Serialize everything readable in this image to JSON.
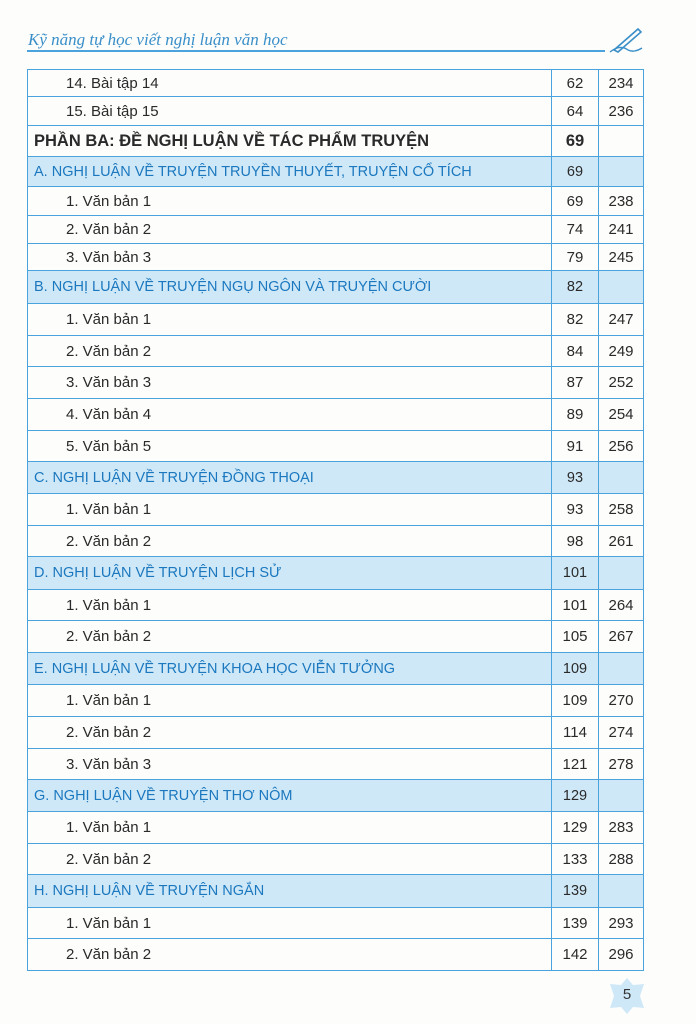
{
  "header": {
    "running_title": "Kỹ năng tự học viết nghị luận văn học",
    "icon": "pen-icon"
  },
  "rows": [
    {
      "type": "item",
      "title": "14. Bài tập 14",
      "p1": "62",
      "p2": "234",
      "h": 27
    },
    {
      "type": "item",
      "title": "15. Bài tập 15",
      "p1": "64",
      "p2": "236",
      "h": 29
    },
    {
      "type": "part",
      "title": "PHẦN BA: ĐỀ NGHỊ LUẬN VỀ TÁC PHẨM TRUYỆN",
      "p1": "69",
      "p2": "",
      "h": 31
    },
    {
      "type": "sec",
      "title": "A. NGHỊ LUẬN VỀ TRUYỆN TRUYỀN THUYẾT, TRUYỆN CỔ TÍCH",
      "p1": "69",
      "p2": "",
      "h": 30
    },
    {
      "type": "item",
      "title": "1. Văn bản 1",
      "p1": "69",
      "p2": "238",
      "h": 29
    },
    {
      "type": "item",
      "title": "2. Văn bản 2",
      "p1": "74",
      "p2": "241",
      "h": 28
    },
    {
      "type": "item",
      "title": "3. Văn bản 3",
      "p1": "79",
      "p2": "245",
      "h": 27
    },
    {
      "type": "sec",
      "title": "B. NGHỊ LUẬN VỀ TRUYỆN NGỤ NGÔN VÀ TRUYỆN CƯỜI",
      "p1": "82",
      "p2": "",
      "h": 33
    },
    {
      "type": "item",
      "title": "1. Văn bản 1",
      "p1": "82",
      "p2": "247",
      "h": 32
    },
    {
      "type": "item",
      "title": "2. Văn bản 2",
      "p1": "84",
      "p2": "249",
      "h": 31
    },
    {
      "type": "item",
      "title": "3. Văn bản 3",
      "p1": "87",
      "p2": "252",
      "h": 32
    },
    {
      "type": "item",
      "title": "4. Văn bản 4",
      "p1": "89",
      "p2": "254",
      "h": 32
    },
    {
      "type": "item",
      "title": "5. Văn bản 5",
      "p1": "91",
      "p2": "256",
      "h": 31
    },
    {
      "type": "sec",
      "title": "C. NGHỊ LUẬN VỀ TRUYỆN ĐỒNG THOẠI",
      "p1": "93",
      "p2": "",
      "h": 32
    },
    {
      "type": "item",
      "title": "1. Văn bản 1",
      "p1": "93",
      "p2": "258",
      "h": 32
    },
    {
      "type": "item",
      "title": "2. Văn bản 2",
      "p1": "98",
      "p2": "261",
      "h": 31
    },
    {
      "type": "sec",
      "title": "D. NGHỊ LUẬN VỀ TRUYỆN LỊCH SỬ",
      "p1": "101",
      "p2": "",
      "h": 33
    },
    {
      "type": "item",
      "title": "1. Văn bản 1",
      "p1": "101",
      "p2": "264",
      "h": 31
    },
    {
      "type": "item",
      "title": "2. Văn bản 2",
      "p1": "105",
      "p2": "267",
      "h": 32
    },
    {
      "type": "sec",
      "title": "E. NGHỊ LUẬN VỀ TRUYỆN KHOA HỌC VIỄN TƯỞNG",
      "p1": "109",
      "p2": "",
      "h": 32
    },
    {
      "type": "item",
      "title": "1. Văn bản 1",
      "p1": "109",
      "p2": "270",
      "h": 32
    },
    {
      "type": "item",
      "title": "2. Văn bản 2",
      "p1": "114",
      "p2": "274",
      "h": 32
    },
    {
      "type": "item",
      "title": "3. Văn bản 3",
      "p1": "121",
      "p2": "278",
      "h": 31
    },
    {
      "type": "sec",
      "title": "G. NGHỊ LUẬN VỀ TRUYỆN THƠ NÔM",
      "p1": "129",
      "p2": "",
      "h": 32
    },
    {
      "type": "item",
      "title": "1. Văn bản 1",
      "p1": "129",
      "p2": "283",
      "h": 32
    },
    {
      "type": "item",
      "title": "2. Văn bản 2",
      "p1": "133",
      "p2": "288",
      "h": 31
    },
    {
      "type": "sec",
      "title": "H. NGHỊ LUẬN VỀ TRUYỆN NGẮN",
      "p1": "139",
      "p2": "",
      "h": 33
    },
    {
      "type": "item",
      "title": "1. Văn bản 1",
      "p1": "139",
      "p2": "293",
      "h": 31
    },
    {
      "type": "item",
      "title": "2. Văn bản 2",
      "p1": "142",
      "p2": "296",
      "h": 32
    }
  ],
  "footer": {
    "page_number": "5"
  },
  "colors": {
    "accent": "#4aa3dc",
    "section_bg": "#cfe8f7",
    "section_text": "#1b78bf"
  }
}
